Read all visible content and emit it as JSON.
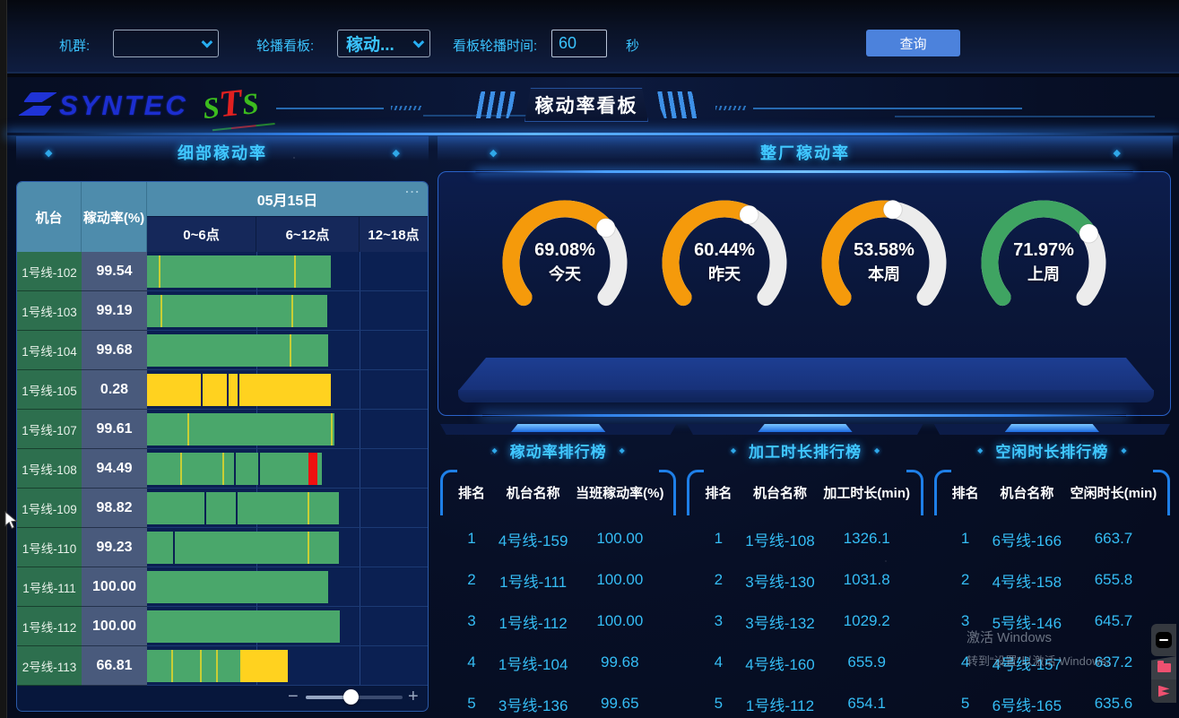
{
  "topbar": {
    "machine_group_label": "机群:",
    "machine_group_value": "",
    "carousel_board_label": "轮播看板:",
    "carousel_board_value": "稼动...",
    "carousel_time_label": "看板轮播时间:",
    "carousel_time_value": "60",
    "seconds_label": "秒",
    "query_button": "查询"
  },
  "header": {
    "syntec_logo": "SYNTEC",
    "sts_logo": [
      "S",
      "T",
      "S"
    ],
    "title": "稼动率看板"
  },
  "detail_panel": {
    "title": "细部稼动率",
    "diamond": "◆",
    "table": {
      "col_machine": "机台",
      "col_rate": "稼动率(%)",
      "date_header": "05月15日",
      "menu_dots": "...",
      "time_cols": [
        "0~6点",
        "6~12点",
        "12~18点"
      ],
      "grid_x": [
        122,
        237
      ],
      "rows": [
        {
          "name": "1号线-102",
          "rate": "99.54",
          "segs": [
            [
              0,
              205,
              "g"
            ]
          ],
          "ticks": [
            13,
            164
          ],
          "seps": []
        },
        {
          "name": "1号线-103",
          "rate": "99.19",
          "segs": [
            [
              0,
              201,
              "g"
            ]
          ],
          "ticks": [
            15,
            161
          ],
          "seps": []
        },
        {
          "name": "1号线-104",
          "rate": "99.68",
          "segs": [
            [
              0,
              202,
              "g"
            ]
          ],
          "ticks": [
            159
          ],
          "seps": []
        },
        {
          "name": "1号线-105",
          "rate": "0.28",
          "segs": [
            [
              0,
              205,
              "y"
            ]
          ],
          "ticks": [],
          "seps": [
            60,
            89,
            101
          ]
        },
        {
          "name": "1号线-107",
          "rate": "99.61",
          "segs": [
            [
              0,
              209,
              "g"
            ]
          ],
          "ticks": [
            45,
            205
          ],
          "seps": []
        },
        {
          "name": "1号线-108",
          "rate": "94.49",
          "segs": [
            [
              0,
              180,
              "g"
            ],
            [
              180,
              10,
              "r"
            ],
            [
              190,
              5,
              "g"
            ]
          ],
          "ticks": [
            37,
            84
          ],
          "seps": [
            97,
            124
          ]
        },
        {
          "name": "1号线-109",
          "rate": "98.82",
          "segs": [
            [
              0,
              214,
              "g"
            ]
          ],
          "ticks": [
            179
          ],
          "seps": [
            64,
            99
          ]
        },
        {
          "name": "1号线-110",
          "rate": "99.23",
          "segs": [
            [
              0,
              214,
              "g"
            ]
          ],
          "ticks": [
            179
          ],
          "seps": [
            29
          ]
        },
        {
          "name": "1号线-111",
          "rate": "100.00",
          "segs": [
            [
              0,
              202,
              "g"
            ]
          ],
          "ticks": [],
          "seps": []
        },
        {
          "name": "1号线-112",
          "rate": "100.00",
          "segs": [
            [
              0,
              215,
              "g"
            ]
          ],
          "ticks": [],
          "seps": []
        },
        {
          "name": "2号线-113",
          "rate": "66.81",
          "segs": [
            [
              0,
              104,
              "g"
            ],
            [
              104,
              53,
              "y"
            ]
          ],
          "ticks": [
            27,
            59,
            77
          ],
          "seps": []
        }
      ]
    },
    "zoom_slider": {
      "minus": "−",
      "plus": "+"
    }
  },
  "factory_panel": {
    "title": "整厂稼动率",
    "diamond": "◆",
    "gauges": [
      {
        "value": 69.08,
        "display": "69.08%",
        "label": "今天",
        "color": "#f59a0b"
      },
      {
        "value": 60.44,
        "display": "60.44%",
        "label": "昨天",
        "color": "#f59a0b"
      },
      {
        "value": 53.58,
        "display": "53.58%",
        "label": "本周",
        "color": "#f59a0b"
      },
      {
        "value": 71.97,
        "display": "71.97%",
        "label": "上周",
        "color": "#3fa462"
      }
    ]
  },
  "rankings": [
    {
      "title": "稼动率排行榜",
      "headers": [
        "排名",
        "机台名称",
        "当班稼动率(%)"
      ],
      "rows": [
        [
          "1",
          "4号线-159",
          "100.00"
        ],
        [
          "2",
          "1号线-111",
          "100.00"
        ],
        [
          "3",
          "1号线-112",
          "100.00"
        ],
        [
          "4",
          "1号线-104",
          "99.68"
        ],
        [
          "5",
          "3号线-136",
          "99.65"
        ]
      ]
    },
    {
      "title": "加工时长排行榜",
      "headers": [
        "排名",
        "机台名称",
        "加工时长(min)"
      ],
      "rows": [
        [
          "1",
          "1号线-108",
          "1326.1"
        ],
        [
          "2",
          "3号线-130",
          "1031.8"
        ],
        [
          "3",
          "3号线-132",
          "1029.2"
        ],
        [
          "4",
          "4号线-160",
          "655.9"
        ],
        [
          "5",
          "1号线-112",
          "654.1"
        ]
      ]
    },
    {
      "title": "空闲时长排行榜",
      "headers": [
        "排名",
        "机台名称",
        "空闲时长(min)"
      ],
      "rows": [
        [
          "1",
          "6号线-166",
          "663.7"
        ],
        [
          "2",
          "4号线-158",
          "655.8"
        ],
        [
          "3",
          "5号线-146",
          "645.7"
        ],
        [
          "4",
          "4号线-157",
          "637.2"
        ],
        [
          "5",
          "6号线-165",
          "635.6"
        ]
      ]
    }
  ],
  "watermark": {
    "line1": "激活 Windows",
    "line2": "转到“设置”以激活 Windows。"
  },
  "colors": {
    "bar_green": "#4aa76b",
    "bar_yellow": "#ffd21f",
    "bar_red": "#f01010",
    "tick": "#c9ce35",
    "sep": "#0b2052",
    "gauge_track": "#ececec",
    "gauge_orange": "#f59a0b",
    "gauge_green": "#3fa462",
    "cyan": "#3bc4ff",
    "accent_blue": "#2f7fe8",
    "button_blue": "#4c82dc"
  },
  "chart_data": [
    {
      "type": "gauge",
      "title": "整厂稼动率",
      "unit": "%",
      "series": [
        {
          "name": "今天",
          "value": 69.08,
          "color": "#f59a0b"
        },
        {
          "name": "昨天",
          "value": 60.44,
          "color": "#f59a0b"
        },
        {
          "name": "本周",
          "value": 53.58,
          "color": "#f59a0b"
        },
        {
          "name": "上周",
          "value": 71.97,
          "color": "#3fa462"
        }
      ],
      "range": [
        0,
        100
      ]
    },
    {
      "type": "table",
      "title": "细部稼动率",
      "date": "05月15日",
      "columns": [
        "机台",
        "稼动率(%)"
      ],
      "time_axis": [
        "0~6点",
        "6~12点",
        "12~18点"
      ],
      "rows": [
        [
          "1号线-102",
          99.54
        ],
        [
          "1号线-103",
          99.19
        ],
        [
          "1号线-104",
          99.68
        ],
        [
          "1号线-105",
          0.28
        ],
        [
          "1号线-107",
          99.61
        ],
        [
          "1号线-108",
          94.49
        ],
        [
          "1号线-109",
          98.82
        ],
        [
          "1号线-110",
          99.23
        ],
        [
          "1号线-111",
          100.0
        ],
        [
          "1号线-112",
          100.0
        ],
        [
          "2号线-113",
          66.81
        ]
      ]
    },
    {
      "type": "table",
      "title": "稼动率排行榜",
      "columns": [
        "排名",
        "机台名称",
        "当班稼动率(%)"
      ],
      "rows": [
        [
          1,
          "4号线-159",
          100.0
        ],
        [
          2,
          "1号线-111",
          100.0
        ],
        [
          3,
          "1号线-112",
          100.0
        ],
        [
          4,
          "1号线-104",
          99.68
        ],
        [
          5,
          "3号线-136",
          99.65
        ]
      ]
    },
    {
      "type": "table",
      "title": "加工时长排行榜",
      "columns": [
        "排名",
        "机台名称",
        "加工时长(min)"
      ],
      "rows": [
        [
          1,
          "1号线-108",
          1326.1
        ],
        [
          2,
          "3号线-130",
          1031.8
        ],
        [
          3,
          "3号线-132",
          1029.2
        ],
        [
          4,
          "4号线-160",
          655.9
        ],
        [
          5,
          "1号线-112",
          654.1
        ]
      ]
    },
    {
      "type": "table",
      "title": "空闲时长排行榜",
      "columns": [
        "排名",
        "机台名称",
        "空闲时长(min)"
      ],
      "rows": [
        [
          1,
          "6号线-166",
          663.7
        ],
        [
          2,
          "4号线-158",
          655.8
        ],
        [
          3,
          "5号线-146",
          645.7
        ],
        [
          4,
          "4号线-157",
          637.2
        ],
        [
          5,
          "6号线-165",
          635.6
        ]
      ]
    }
  ]
}
